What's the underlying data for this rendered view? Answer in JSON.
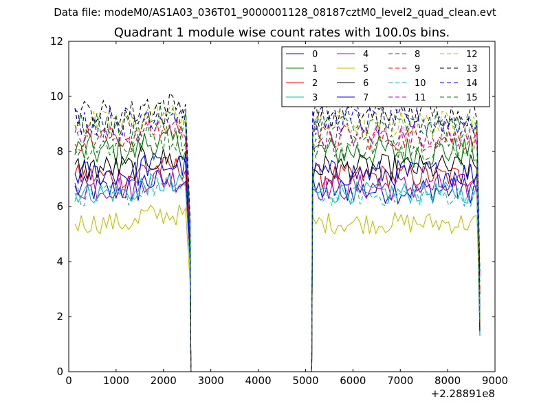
{
  "suptitle": "Data file: modeM0/AS1A03_036T01_9000001128_08187cztM0_level2_quad_clean.evt",
  "chart_data": {
    "type": "line",
    "title": "Quadrant 1 module wise count rates with 100.0s bins.",
    "xlabel": "",
    "ylabel": "",
    "x_offset_label": "+2.28891e8",
    "xlim": [
      0,
      9000
    ],
    "ylim": [
      0,
      12
    ],
    "xticks": [
      0,
      1000,
      2000,
      3000,
      4000,
      5000,
      6000,
      7000,
      8000,
      9000
    ],
    "yticks": [
      0,
      2,
      4,
      6,
      8,
      10,
      12
    ],
    "grid": false,
    "legend_position": "top-right",
    "legend_columns": 4,
    "segments": [
      {
        "start": 130,
        "end": 2530,
        "step": 66.7,
        "ramp_down_to": 2580
      },
      {
        "start": 5150,
        "end": 8650,
        "step": 66.7,
        "ramp_up_from": 5130,
        "drop_end": 8680
      }
    ],
    "series": [
      {
        "name": "0",
        "color": "#0000ff",
        "dash": "solid",
        "level": 6.6,
        "noise": 0.5
      },
      {
        "name": "1",
        "color": "#008000",
        "dash": "solid",
        "level": 8.0,
        "noise": 0.6
      },
      {
        "name": "2",
        "color": "#ff0000",
        "dash": "solid",
        "level": 7.1,
        "noise": 0.45
      },
      {
        "name": "3",
        "color": "#00bfbf",
        "dash": "solid",
        "level": 6.5,
        "noise": 0.4
      },
      {
        "name": "4",
        "color": "#bf00bf",
        "dash": "solid",
        "level": 6.7,
        "noise": 0.5
      },
      {
        "name": "5",
        "color": "#bfbf00",
        "dash": "solid",
        "level": 5.4,
        "noise": 0.4
      },
      {
        "name": "6",
        "color": "#000000",
        "dash": "solid",
        "level": 7.4,
        "noise": 0.5
      },
      {
        "name": "7",
        "color": "#0000ff",
        "dash": "solid",
        "level": 7.2,
        "noise": 0.5
      },
      {
        "name": "8",
        "color": "#008000",
        "dash": "dashed",
        "level": 8.2,
        "noise": 0.5
      },
      {
        "name": "9",
        "color": "#ff0000",
        "dash": "dashed",
        "level": 8.5,
        "noise": 0.5
      },
      {
        "name": "10",
        "color": "#00bfbf",
        "dash": "dashed",
        "level": 6.4,
        "noise": 0.4
      },
      {
        "name": "11",
        "color": "#bf00bf",
        "dash": "dashed",
        "level": 8.6,
        "noise": 0.5
      },
      {
        "name": "12",
        "color": "#bfbf00",
        "dash": "dashed",
        "level": 9.0,
        "noise": 0.5
      },
      {
        "name": "13",
        "color": "#000000",
        "dash": "dashed",
        "level": 9.4,
        "noise": 0.5
      },
      {
        "name": "14",
        "color": "#0000ff",
        "dash": "dashed",
        "level": 9.1,
        "noise": 0.55
      },
      {
        "name": "15",
        "color": "#008000",
        "dash": "dashed",
        "level": 8.9,
        "noise": 0.5
      }
    ]
  }
}
